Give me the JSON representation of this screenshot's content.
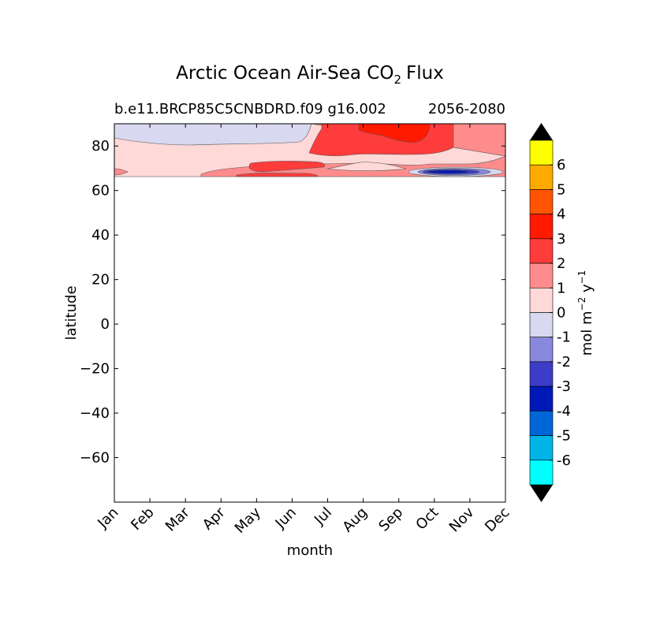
{
  "chart_data": {
    "type": "contour",
    "title": "Arctic Ocean Air-Sea CO",
    "title_sub": "2",
    "title_suffix": "Flux",
    "subtitle_left": "b.e11.BRCP85C5CNBDRD.f09 g16.002",
    "subtitle_right": "2056-2080",
    "xlabel": "month",
    "ylabel": "latitude",
    "x_ticks": [
      "Jan",
      "Feb",
      "Mar",
      "Apr",
      "May",
      "Jun",
      "Jul",
      "Aug",
      "Sep",
      "Oct",
      "Nov",
      "Dec"
    ],
    "xlim": [
      0,
      11
    ],
    "ylim": [
      -80,
      90
    ],
    "y_ticks": [
      80,
      60,
      40,
      20,
      0,
      -20,
      -40,
      -60
    ],
    "y_tick_labels": [
      "80",
      "60",
      "40",
      "20",
      "0",
      "−20",
      "−40",
      "−60"
    ],
    "data_lat_range": [
      66,
      90
    ],
    "colorbar": {
      "label_main": "mol m",
      "label_exp1": "−2",
      "label_mid": " y",
      "label_exp2": "−1",
      "levels": [
        6,
        5,
        4,
        3,
        2,
        1,
        0,
        -1,
        -2,
        -3,
        -4,
        -5,
        -6
      ],
      "level_labels": [
        "6",
        "5",
        "4",
        "3",
        "2",
        "1",
        "0",
        "-1",
        "-2",
        "-3",
        "-4",
        "-5",
        "-6"
      ],
      "colors": [
        "#ffff00",
        "#ffaa00",
        "#ff5500",
        "#ff1a00",
        "#ff3c3c",
        "#ff8c8c",
        "#ffd8d8",
        "#d8d8f0",
        "#8888dd",
        "#3c3cc8",
        "#0018b8",
        "#0066d8",
        "#00b4e6",
        "#00ffff"
      ],
      "extend": "both",
      "extend_color": "#000000"
    },
    "regions": [
      {
        "name": "flux 0 to 1 (background)",
        "color": "#ffd8d8"
      },
      {
        "name": "flux -1 to 0 (Jan-May, high latitude)",
        "color": "#d8d8f0"
      },
      {
        "name": "flux 1 to 2 (Jun-Dec band)",
        "color": "#ff8c8c"
      },
      {
        "name": "flux 2 to 3 (summer core)",
        "color": "#ff3c3c"
      },
      {
        "name": "flux 3 to 4 (Aug-Sep peak)",
        "color": "#ff1a00"
      },
      {
        "name": "flux below -3 (Oct-Nov, ice edge)",
        "color": "#0018b8"
      }
    ]
  }
}
